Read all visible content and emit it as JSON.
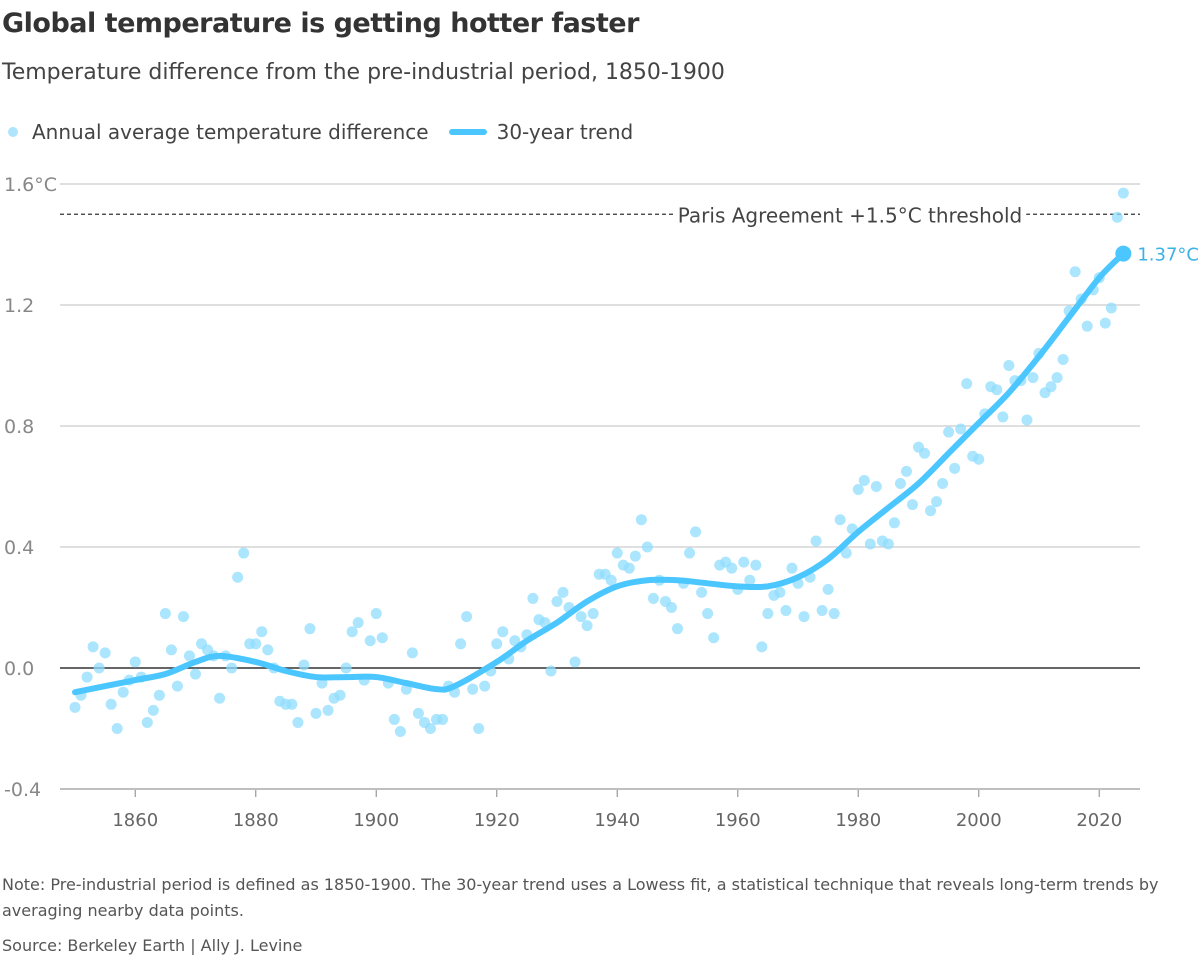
{
  "chart_data": {
    "type": "scatter",
    "title": "Global temperature is getting hotter faster",
    "subtitle": "Temperature difference from the pre-industrial period, 1850-1900",
    "legend": {
      "dots": "Annual average temperature difference",
      "line": "30-year trend",
      "placement": "top-left"
    },
    "y_ticks": [
      "1.6°C",
      "1.2",
      "0.8",
      "0.4",
      "0.0",
      "-0.4"
    ],
    "y_tick_values": [
      1.6,
      1.2,
      0.8,
      0.4,
      0.0,
      -0.4
    ],
    "x_ticks": [
      "1860",
      "1880",
      "1900",
      "1920",
      "1940",
      "1960",
      "1980",
      "2000",
      "2020"
    ],
    "xlim": [
      1845,
      2032
    ],
    "ylim": [
      -0.4,
      1.6
    ],
    "threshold": {
      "value": 1.5,
      "label": "Paris Agreement +1.5°C threshold"
    },
    "end_label": "1.37°C",
    "end_value": 1.37,
    "annual": {
      "start_year": 1850,
      "values": [
        -0.13,
        -0.09,
        -0.03,
        0.07,
        0.0,
        0.05,
        -0.12,
        -0.2,
        -0.08,
        -0.04,
        0.02,
        -0.03,
        -0.18,
        -0.14,
        -0.09,
        0.18,
        0.06,
        -0.06,
        0.17,
        0.04,
        -0.02,
        0.08,
        0.06,
        0.04,
        -0.1,
        0.04,
        0.0,
        0.3,
        0.38,
        0.08,
        0.08,
        0.12,
        0.06,
        0.0,
        -0.11,
        -0.12,
        -0.12,
        -0.18,
        0.01,
        0.13,
        -0.15,
        -0.05,
        -0.14,
        -0.1,
        -0.09,
        0.0,
        0.12,
        0.15,
        -0.04,
        0.09,
        0.18,
        0.1,
        -0.05,
        -0.17,
        -0.21,
        -0.07,
        0.05,
        -0.15,
        -0.18,
        -0.2,
        -0.17,
        -0.17,
        -0.06,
        -0.08,
        0.08,
        0.17,
        -0.07,
        -0.2,
        -0.06,
        -0.01,
        0.08,
        0.12,
        0.03,
        0.09,
        0.07,
        0.11,
        0.23,
        0.16,
        0.15,
        -0.01,
        0.22,
        0.25,
        0.2,
        0.02,
        0.17,
        0.14,
        0.18,
        0.31,
        0.31,
        0.29,
        0.38,
        0.34,
        0.33,
        0.37,
        0.49,
        0.4,
        0.23,
        0.29,
        0.22,
        0.2,
        0.13,
        0.28,
        0.38,
        0.45,
        0.25,
        0.18,
        0.1,
        0.34,
        0.35,
        0.33,
        0.26,
        0.35,
        0.29,
        0.34,
        0.07,
        0.18,
        0.24,
        0.25,
        0.19,
        0.33,
        0.28,
        0.17,
        0.3,
        0.42,
        0.19,
        0.26,
        0.18,
        0.49,
        0.38,
        0.46,
        0.59,
        0.62,
        0.41,
        0.6,
        0.42,
        0.41,
        0.48,
        0.61,
        0.65,
        0.54,
        0.73,
        0.71,
        0.52,
        0.55,
        0.61,
        0.78,
        0.66,
        0.79,
        0.94,
        0.7,
        0.69,
        0.84,
        0.93,
        0.92,
        0.83,
        1.0,
        0.95,
        0.95,
        0.82,
        0.96,
        1.04,
        0.91,
        0.93,
        0.96,
        1.02,
        1.18,
        1.31,
        1.22,
        1.13,
        1.25,
        1.29,
        1.14,
        1.19,
        1.49,
        1.57
      ]
    },
    "trend": {
      "years": [
        1850,
        1860,
        1865,
        1870,
        1874,
        1880,
        1885,
        1890,
        1895,
        1900,
        1905,
        1910,
        1913,
        1920,
        1925,
        1930,
        1935,
        1940,
        1945,
        1950,
        1955,
        1960,
        1965,
        1970,
        1975,
        1980,
        1985,
        1990,
        1995,
        2000,
        2005,
        2010,
        2015,
        2020,
        2024
      ],
      "values": [
        -0.08,
        -0.04,
        -0.02,
        0.02,
        0.04,
        0.02,
        -0.01,
        -0.03,
        -0.03,
        -0.03,
        -0.05,
        -0.07,
        -0.06,
        0.02,
        0.09,
        0.15,
        0.22,
        0.27,
        0.29,
        0.29,
        0.28,
        0.27,
        0.27,
        0.3,
        0.36,
        0.45,
        0.53,
        0.61,
        0.71,
        0.81,
        0.91,
        1.03,
        1.16,
        1.29,
        1.37
      ]
    },
    "colors": {
      "dots": "#8fdcfd",
      "trend": "#4cc6ff",
      "label": "#3bb1e6"
    }
  },
  "note": "Note: Pre-industrial period is defined as 1850-1900. The 30-year trend uses a Lowess fit, a statistical technique that reveals long-term trends by averaging nearby data points.",
  "source": "Source: Berkeley Earth | Ally J. Levine"
}
